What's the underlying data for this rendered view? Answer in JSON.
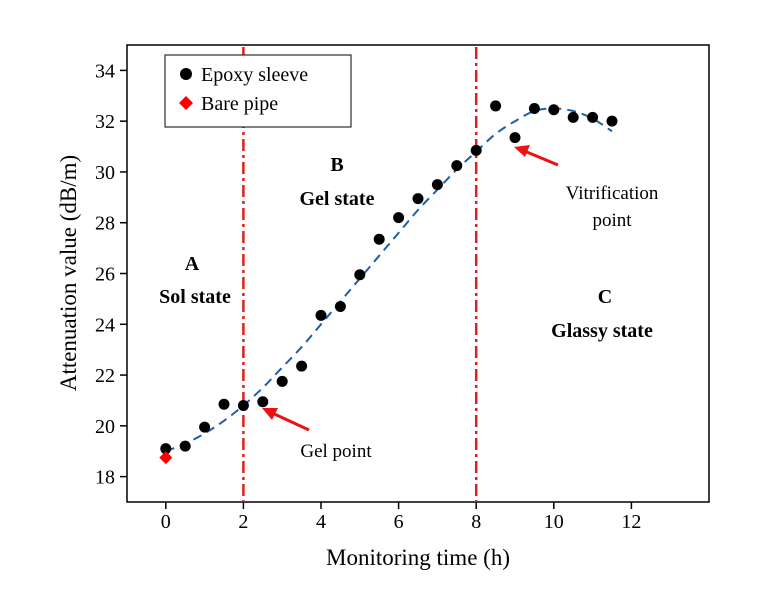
{
  "chart_data": {
    "type": "scatter",
    "xlabel": "Monitoring time (h)",
    "ylabel": "Attenuation value (dB/m)",
    "xlim": [
      -1,
      14
    ],
    "ylim": [
      17,
      35
    ],
    "xticks": [
      0,
      2,
      4,
      6,
      8,
      10,
      12
    ],
    "yticks": [
      18,
      20,
      22,
      24,
      26,
      28,
      30,
      32,
      34
    ],
    "grid": false,
    "legend_position": "top-left",
    "series": [
      {
        "name": "Epoxy sleeve",
        "marker": "circle",
        "color": "#000000",
        "x": [
          0,
          0.5,
          1,
          1.5,
          2,
          2.5,
          3,
          3.5,
          4,
          4.5,
          5,
          5.5,
          6,
          6.5,
          7,
          7.5,
          8,
          8.5,
          9,
          9.5,
          10,
          10.5,
          11,
          11.5
        ],
        "y": [
          19.1,
          19.2,
          19.95,
          20.85,
          20.8,
          20.95,
          21.75,
          22.35,
          24.35,
          24.7,
          25.95,
          27.35,
          28.2,
          28.95,
          29.5,
          30.25,
          30.85,
          32.6,
          31.35,
          32.5,
          32.45,
          32.15,
          32.15,
          32.0
        ]
      },
      {
        "name": "Bare pipe",
        "marker": "diamond",
        "color": "#ff0000",
        "x": [
          0
        ],
        "y": [
          18.75
        ]
      }
    ],
    "fit_curve": {
      "style": "dashed",
      "color": "#1f5fa8",
      "x": [
        0,
        0.5,
        1,
        1.5,
        2,
        2.5,
        3,
        3.5,
        4,
        4.5,
        5,
        5.5,
        6,
        6.5,
        7,
        7.5,
        8,
        8.5,
        9,
        9.5,
        10,
        10.5,
        11,
        11.5
      ],
      "y": [
        19.0,
        19.3,
        19.7,
        20.2,
        20.8,
        21.5,
        22.3,
        23.1,
        24.0,
        24.9,
        25.8,
        26.7,
        27.6,
        28.5,
        29.3,
        30.1,
        30.8,
        31.5,
        32.0,
        32.4,
        32.5,
        32.4,
        32.1,
        31.6
      ]
    },
    "vertical_lines": [
      {
        "x": 2,
        "color": "#e02020",
        "style": "dash-dot"
      },
      {
        "x": 8,
        "color": "#e02020",
        "style": "dash-dot"
      }
    ],
    "regions": [
      {
        "letter": "A",
        "name": "Sol state"
      },
      {
        "letter": "B",
        "name": "Gel state"
      },
      {
        "letter": "C",
        "name": "Glassy state"
      }
    ],
    "annotations": [
      {
        "text": "Gel point",
        "arrow_to": [
          2.2,
          20.8
        ]
      },
      {
        "text_lines": [
          "Vitrification",
          "point"
        ],
        "arrow_to": [
          8.3,
          30.6
        ]
      }
    ]
  }
}
